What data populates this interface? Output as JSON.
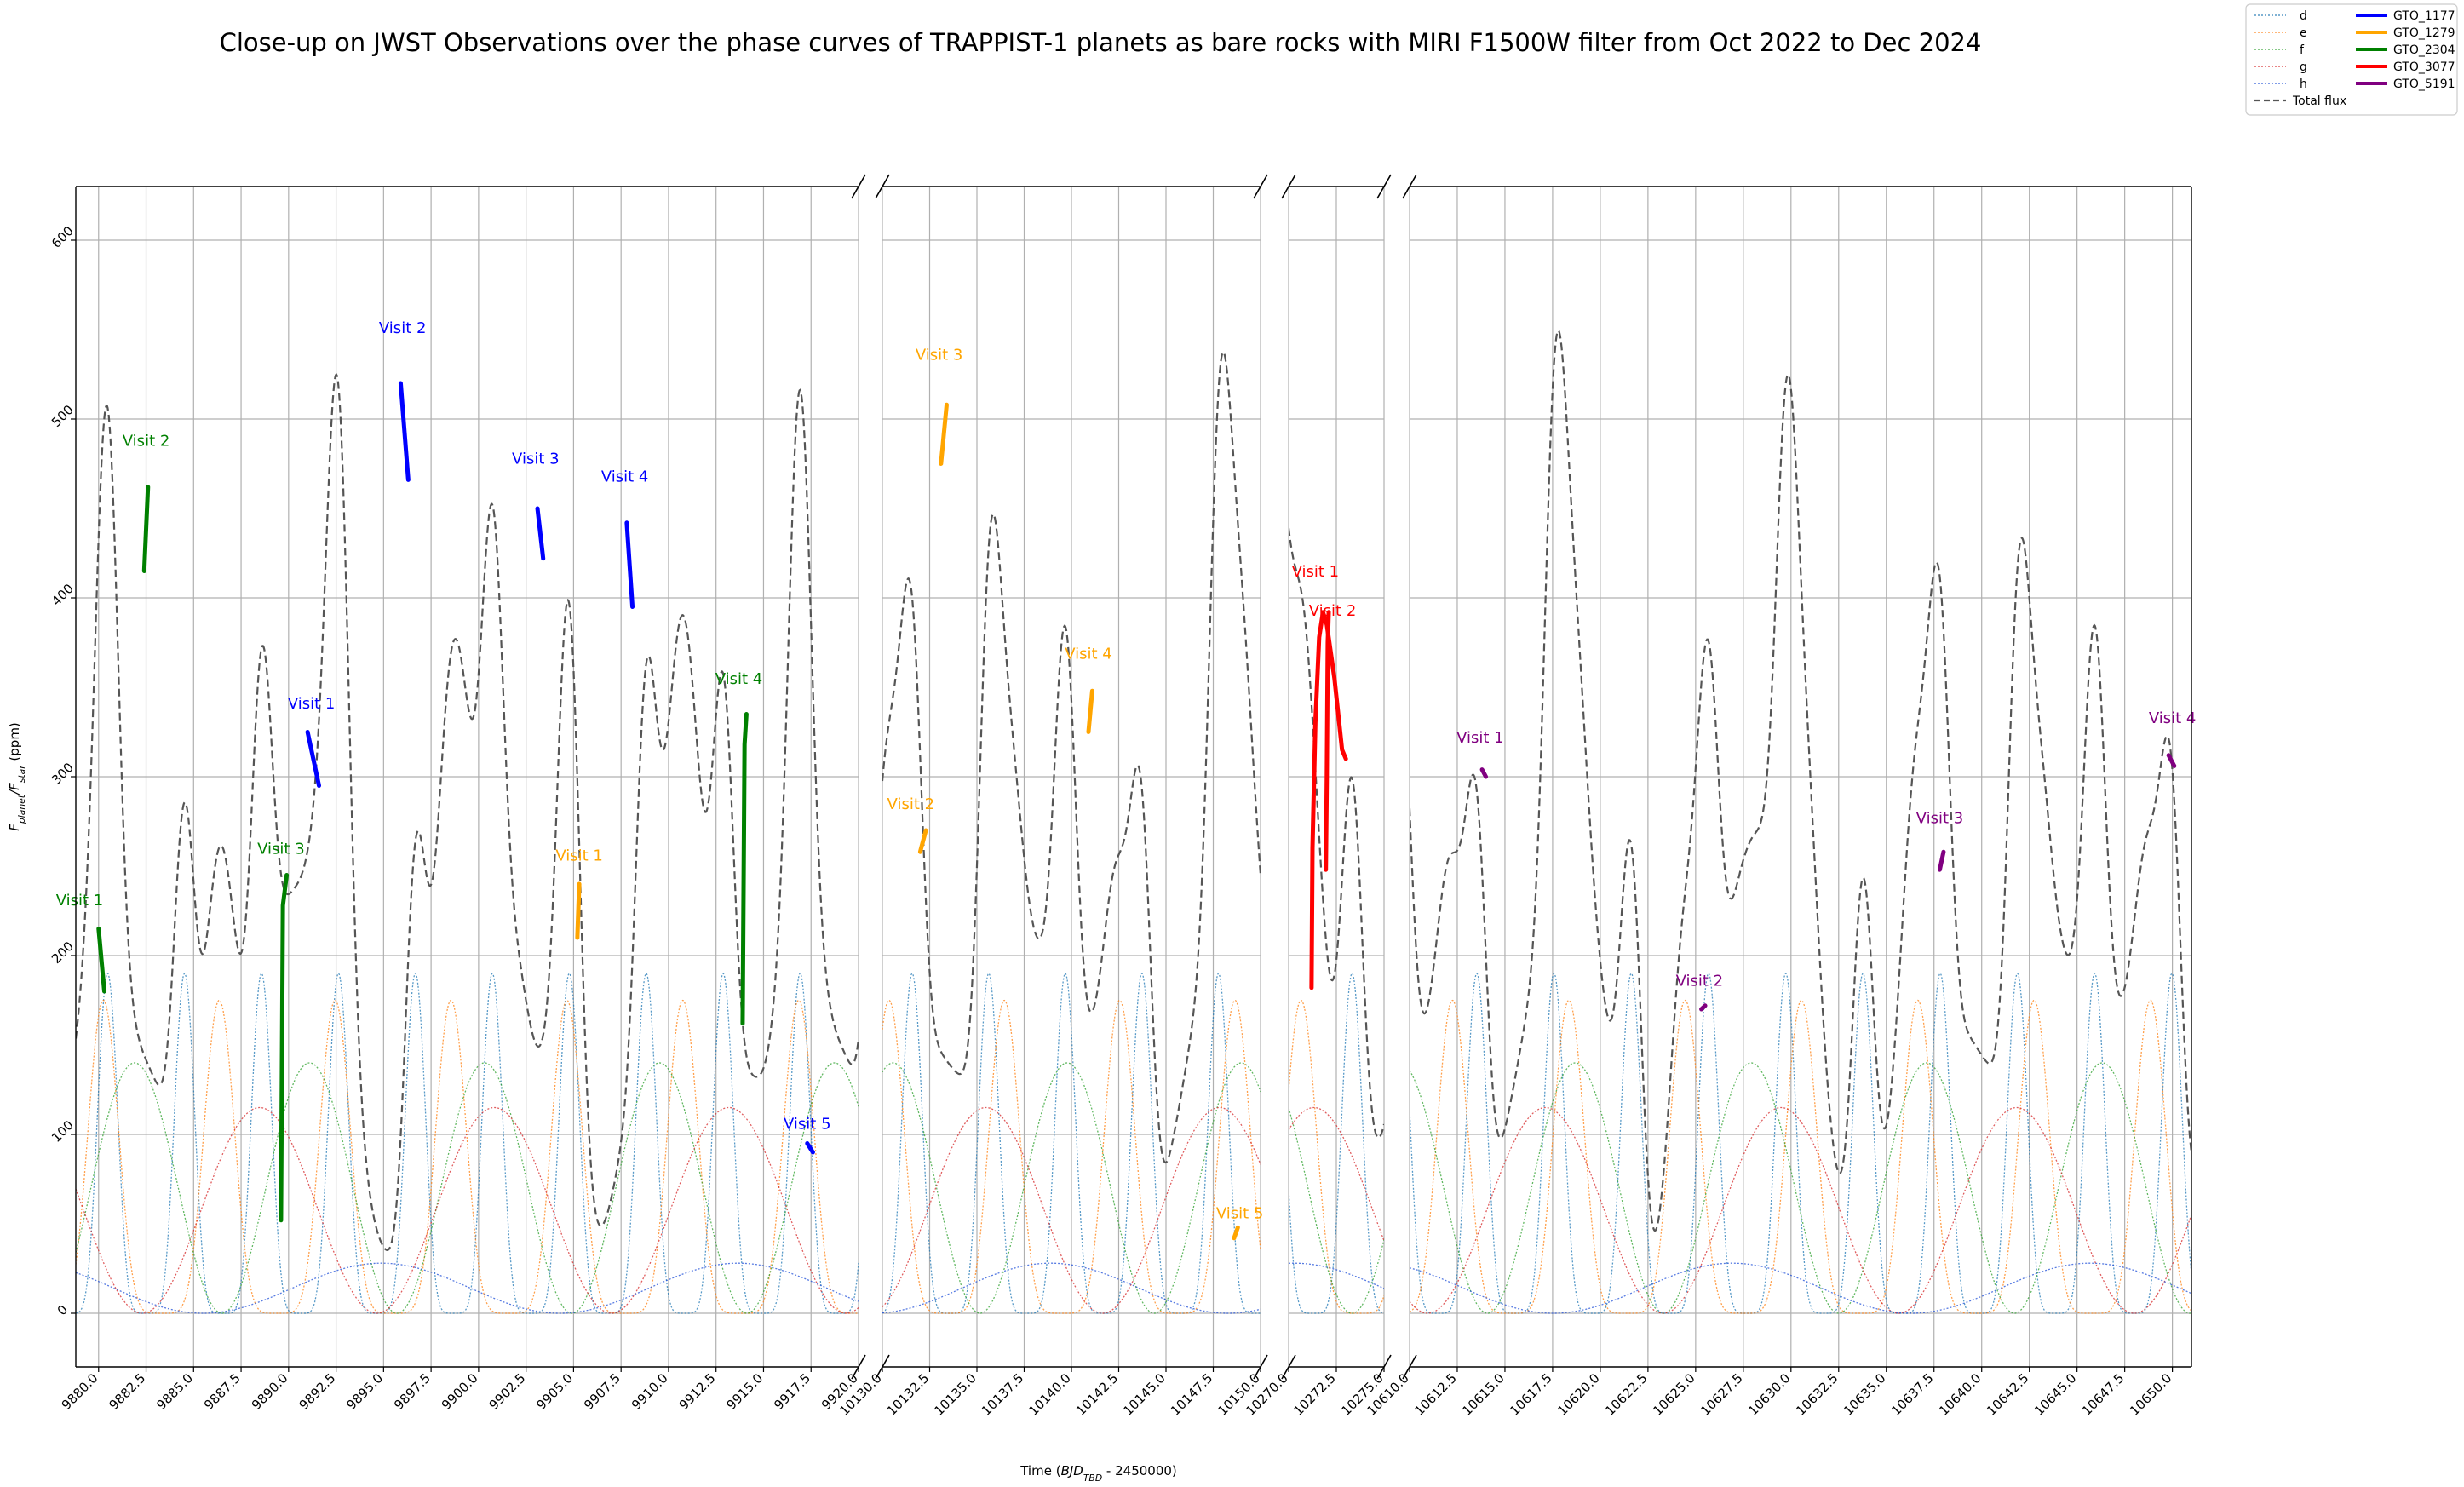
{
  "chart_data": {
    "type": "line",
    "title": "Close-up on JWST Observations over the phase curves of TRAPPIST-1 planets as bare rocks with MIRI F1500W filter from Oct 2022 to Dec 2024",
    "xlabel": "Time ($BJD_{TBD} - 2450000$)",
    "ylabel": "$F_{planet}/F_{star}$ (ppm)",
    "ylim": [
      -30,
      630
    ],
    "yticks": [
      0,
      100,
      200,
      300,
      400,
      500,
      600
    ],
    "yticklabels": [
      "0",
      "100",
      "200",
      "300",
      "400",
      "500",
      "600"
    ],
    "grid": true,
    "legend_position": "top-right",
    "panels": [
      {
        "xlim": [
          9878.8,
          9920.0
        ],
        "xticks": [
          9880.0,
          9882.5,
          9885.0,
          9887.5,
          9890.0,
          9892.5,
          9895.0,
          9897.5,
          9900.0,
          9902.5,
          9905.0,
          9907.5,
          9910.0,
          9912.5,
          9915.0,
          9917.5,
          9920.0
        ],
        "xticklabels": [
          "9880.0",
          "9882.5",
          "9885.0",
          "9887.5",
          "9890.0",
          "9892.5",
          "9895.0",
          "9897.5",
          "9900.0",
          "9902.5",
          "9905.0",
          "9907.5",
          "9910.0",
          "9912.5",
          "9915.0",
          "9917.5",
          "9920.0"
        ]
      },
      {
        "xlim": [
          10130.0,
          10150.0
        ],
        "xticks": [
          10130.0,
          10132.5,
          10135.0,
          10137.5,
          10140.0,
          10142.5,
          10145.0,
          10147.5,
          10150.0
        ],
        "xticklabels": [
          "10130.0",
          "10132.5",
          "10135.0",
          "10137.5",
          "10140.0",
          "10142.5",
          "10145.0",
          "10147.5",
          "10150.0"
        ]
      },
      {
        "xlim": [
          10270.0,
          10275.0
        ],
        "xticks": [
          10270.0,
          10272.5,
          10275.0
        ],
        "xticklabels": [
          "10270.0",
          "10272.5",
          "10275.0"
        ]
      },
      {
        "xlim": [
          10610.0,
          10651.0
        ],
        "xticks": [
          10610.0,
          10612.5,
          10615.0,
          10617.5,
          10620.0,
          10622.5,
          10625.0,
          10627.5,
          10630.0,
          10632.5,
          10635.0,
          10637.5,
          10640.0,
          10642.5,
          10645.0,
          10647.5,
          10650.0
        ],
        "xticklabels": [
          "10610.0",
          "10612.5",
          "10615.0",
          "10617.5",
          "10620.0",
          "10622.5",
          "10625.0",
          "10627.5",
          "10630.0",
          "10632.5",
          "10635.0",
          "10637.5",
          "10640.0",
          "10642.5",
          "10645.0",
          "10647.5",
          "10650.0"
        ]
      }
    ],
    "planets": [
      {
        "name": "d",
        "color": "#1f77b4",
        "amplitude": 190,
        "period": 4.05,
        "eclipse": 9882.5,
        "shape": "pulse"
      },
      {
        "name": "e",
        "color": "#ff7f0e",
        "amplitude": 175,
        "period": 6.1,
        "eclipse": 9883.3,
        "shape": "pulse"
      },
      {
        "name": "f",
        "color": "#2ca02c",
        "amplitude": 140,
        "period": 9.21,
        "eclipse": 9886.5,
        "shape": "cosine"
      },
      {
        "name": "g",
        "color": "#d62728",
        "amplitude": 115,
        "period": 12.35,
        "eclipse": 9882.3,
        "shape": "cosine"
      },
      {
        "name": "h",
        "color": "#1f4fd8",
        "amplitude": 28,
        "period": 18.77,
        "eclipse": 9885.5,
        "shape": "cosine"
      }
    ],
    "total_flux": {
      "name": "Total flux",
      "color": "#555555",
      "style": "dashed"
    },
    "series": [
      {
        "name": "GTO_1177",
        "color": "#0000ff",
        "visits": [
          {
            "label": "Visit 1",
            "points": [
              [
                9891.0,
                325
              ],
              [
                9891.6,
                295
              ]
            ],
            "label_at": [
              9891.2,
              338
            ]
          },
          {
            "label": "Visit 2",
            "points": [
              [
                9895.9,
                520
              ],
              [
                9896.3,
                466
              ]
            ],
            "label_at": [
              9896.0,
              548
            ]
          },
          {
            "label": "Visit 3",
            "points": [
              [
                9903.1,
                450
              ],
              [
                9903.4,
                422
              ]
            ],
            "label_at": [
              9903.0,
              475
            ]
          },
          {
            "label": "Visit 4",
            "points": [
              [
                9907.8,
                442
              ],
              [
                9908.1,
                395
              ]
            ],
            "label_at": [
              9907.7,
              465
            ]
          },
          {
            "label": "Visit 5",
            "points": [
              [
                9917.3,
                95
              ],
              [
                9917.6,
                90
              ]
            ],
            "label_at": [
              9917.3,
              103
            ]
          }
        ]
      },
      {
        "name": "GTO_1279",
        "color": "#ffa500",
        "visits": [
          {
            "label": "Visit 1",
            "points": [
              [
                9905.2,
                210
              ],
              [
                9905.3,
                240
              ]
            ],
            "label_at": [
              9905.3,
              253
            ]
          },
          {
            "label": "Visit 2",
            "points": [
              [
                10132.0,
                258
              ],
              [
                10132.3,
                270
              ]
            ],
            "label_at": [
              10131.5,
              282
            ]
          },
          {
            "label": "Visit 3",
            "points": [
              [
                10133.1,
                475
              ],
              [
                10133.4,
                508
              ]
            ],
            "label_at": [
              10133.0,
              533
            ]
          },
          {
            "label": "Visit 4",
            "points": [
              [
                10140.9,
                325
              ],
              [
                10141.1,
                348
              ]
            ],
            "label_at": [
              10140.9,
              366
            ]
          },
          {
            "label": "Visit 5",
            "points": [
              [
                10148.6,
                42
              ],
              [
                10148.8,
                48
              ]
            ],
            "label_at": [
              10148.9,
              53
            ]
          }
        ]
      },
      {
        "name": "GTO_2304",
        "color": "#008000",
        "visits": [
          {
            "label": "Visit 1",
            "points": [
              [
                9880.0,
                215
              ],
              [
                9880.3,
                180
              ]
            ],
            "label_at": [
              9879.0,
              228
            ]
          },
          {
            "label": "Visit 2",
            "points": [
              [
                9882.4,
                415
              ],
              [
                9882.6,
                462
              ]
            ],
            "label_at": [
              9882.5,
              485
            ]
          },
          {
            "label": "Visit 3",
            "points": [
              [
                9889.6,
                52
              ],
              [
                9889.7,
                228
              ],
              [
                9889.9,
                245
              ]
            ],
            "label_at": [
              9889.6,
              257
            ]
          },
          {
            "label": "Visit 4",
            "points": [
              [
                9913.9,
                162
              ],
              [
                9914.0,
                318
              ],
              [
                9914.1,
                335
              ]
            ],
            "label_at": [
              9913.7,
              352
            ]
          }
        ]
      },
      {
        "name": "GTO_3077",
        "color": "#ff0000",
        "visits": [
          {
            "label": "Visit 1",
            "points": [
              [
                10271.2,
                182
              ],
              [
                10271.25,
                260
              ],
              [
                10271.4,
                330
              ],
              [
                10271.6,
                378
              ],
              [
                10271.8,
                392
              ],
              [
                10272.0,
                385
              ],
              [
                10272.4,
                355
              ],
              [
                10272.8,
                315
              ],
              [
                10273.0,
                310
              ]
            ],
            "label_at": [
              10271.4,
              412
            ]
          },
          {
            "label": "Visit 2",
            "points": [
              [
                10271.95,
                248
              ],
              [
                10272.0,
                300
              ],
              [
                10272.05,
                375
              ],
              [
                10272.1,
                392
              ]
            ],
            "label_at": [
              10272.3,
              390
            ]
          }
        ]
      },
      {
        "name": "GTO_5191",
        "color": "#800080",
        "visits": [
          {
            "label": "Visit 1",
            "points": [
              [
                10613.8,
                304
              ],
              [
                10614.0,
                300
              ]
            ],
            "label_at": [
              10613.7,
              319
            ]
          },
          {
            "label": "Visit 2",
            "points": [
              [
                10625.3,
                170
              ],
              [
                10625.5,
                172
              ]
            ],
            "label_at": [
              10625.2,
              183
            ]
          },
          {
            "label": "Visit 3",
            "points": [
              [
                10637.8,
                248
              ],
              [
                10638.0,
                258
              ]
            ],
            "label_at": [
              10637.8,
              274
            ]
          },
          {
            "label": "Visit 4",
            "points": [
              [
                10649.8,
                312
              ],
              [
                10650.1,
                306
              ]
            ],
            "label_at": [
              10650.0,
              330
            ]
          }
        ]
      }
    ],
    "legend": {
      "planet_labels": [
        "d",
        "e",
        "f",
        "g",
        "h"
      ],
      "program_labels": [
        "GTO_1177",
        "GTO_1279",
        "GTO_2304",
        "GTO_3077",
        "GTO_5191"
      ],
      "total_label": "Total flux"
    }
  }
}
